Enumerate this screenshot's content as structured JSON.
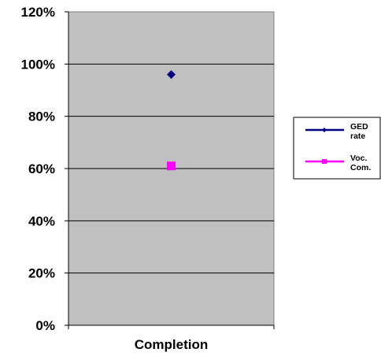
{
  "chart_data": {
    "type": "scatter",
    "categories": [
      "Completion"
    ],
    "series": [
      {
        "name": "GED rate",
        "name_lines": [
          "GED",
          "rate"
        ],
        "values": [
          0.96
        ],
        "color": "#000080",
        "marker": "diamond"
      },
      {
        "name": "Voc. Com.",
        "name_lines": [
          "Voc.",
          "Com."
        ],
        "values": [
          0.61
        ],
        "color": "#FF00FF",
        "marker": "square"
      }
    ],
    "ylim": [
      0,
      1.2
    ],
    "yticks": [
      "0%",
      "20%",
      "40%",
      "60%",
      "80%",
      "100%",
      "120%"
    ],
    "ytick_values": [
      0,
      0.2,
      0.4,
      0.6,
      0.8,
      1.0,
      1.2
    ],
    "xlabel": "Completion",
    "ylabel": "",
    "title": "",
    "grid": true,
    "plot_background": "#C0C0C0",
    "legend": "right"
  }
}
